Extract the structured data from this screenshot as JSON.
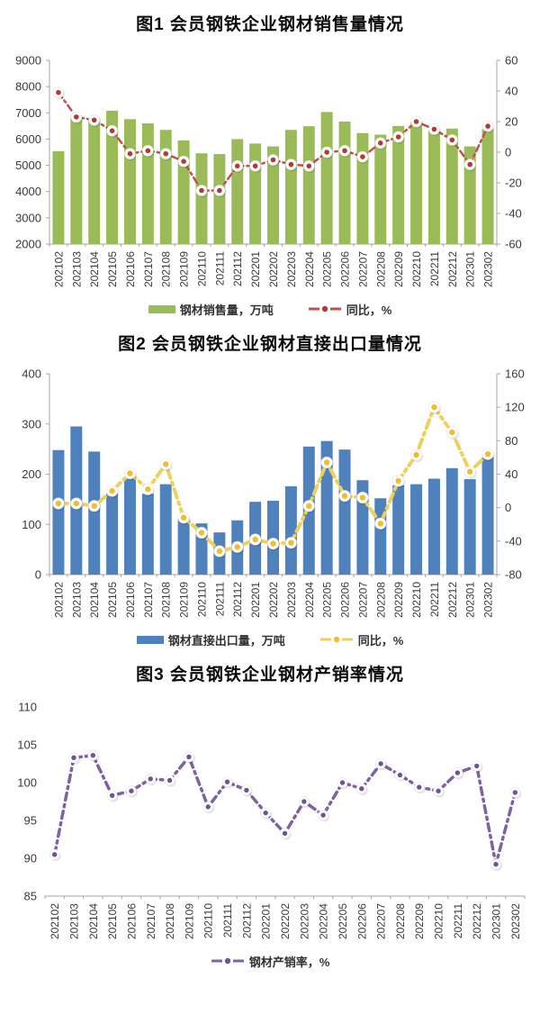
{
  "chart_data": [
    {
      "type": "bar",
      "title": "图1 会员钢铁企业钢材销售量情况",
      "categories": [
        "202102",
        "202103",
        "202104",
        "202105",
        "202106",
        "202107",
        "202108",
        "202109",
        "202110",
        "202111",
        "202112",
        "202201",
        "202202",
        "202203",
        "202204",
        "202205",
        "202206",
        "202207",
        "202208",
        "202209",
        "202210",
        "202211",
        "202212",
        "202301",
        "202302"
      ],
      "series": [
        {
          "name": "钢材销售量，万吨",
          "type": "bar",
          "axis": "left",
          "color": "#9bbb59",
          "values": [
            5540,
            6900,
            6800,
            7080,
            6760,
            6600,
            6350,
            5950,
            5460,
            5430,
            6000,
            5830,
            5720,
            6350,
            6490,
            7030,
            6670,
            6230,
            6170,
            6500,
            6660,
            6330,
            6400,
            5720,
            6380
          ]
        },
        {
          "name": "同比，%",
          "type": "line",
          "axis": "right",
          "color": "#c0504d",
          "dot_color": "#b03a36",
          "values": [
            39,
            23,
            21,
            14,
            -1,
            1,
            -1,
            -6,
            -25,
            -25,
            -9,
            -9,
            -5,
            -8,
            -9,
            0,
            1,
            -3,
            6,
            10,
            20,
            15,
            8,
            -8,
            17
          ]
        }
      ],
      "left_axis": {
        "min": 2000,
        "max": 9000,
        "ticks": [
          2000,
          3000,
          4000,
          5000,
          6000,
          7000,
          8000,
          9000
        ]
      },
      "right_axis": {
        "min": -60,
        "max": 60,
        "ticks": [
          -60,
          -40,
          -20,
          0,
          20,
          40,
          60
        ]
      },
      "grid": "off",
      "legend_position": "bottom"
    },
    {
      "type": "bar",
      "title": "图2 会员钢铁企业钢材直接出口量情况",
      "categories": [
        "202102",
        "202103",
        "202104",
        "202105",
        "202106",
        "202107",
        "202108",
        "202109",
        "202110",
        "202111",
        "202112",
        "202201",
        "202202",
        "202203",
        "202204",
        "202205",
        "202206",
        "202207",
        "202208",
        "202209",
        "202210",
        "202211",
        "202212",
        "202301",
        "202302"
      ],
      "series": [
        {
          "name": "钢材直接出口量，万吨",
          "type": "bar",
          "axis": "left",
          "color": "#4f81bd",
          "values": [
            248,
            295,
            245,
            161,
            194,
            161,
            180,
            112,
            102,
            84,
            108,
            145,
            147,
            176,
            255,
            266,
            249,
            188,
            152,
            178,
            180,
            191,
            212,
            190,
            234
          ]
        },
        {
          "name": "同比，%",
          "type": "line",
          "axis": "right",
          "color": "#ecd15e",
          "dot_color": "#efbe2d",
          "values": [
            5,
            5,
            2,
            20,
            41,
            22,
            52,
            -12,
            -30,
            -52,
            -47,
            -38,
            -43,
            -42,
            2,
            54,
            14,
            12,
            -19,
            32,
            63,
            120,
            90,
            43,
            64
          ]
        }
      ],
      "left_axis": {
        "min": 0,
        "max": 400,
        "ticks": [
          0,
          100,
          200,
          300,
          400
        ]
      },
      "right_axis": {
        "min": -80,
        "max": 160,
        "ticks": [
          -80,
          -40,
          0,
          40,
          80,
          120,
          160
        ]
      },
      "grid": "off",
      "legend_position": "bottom"
    },
    {
      "type": "line",
      "title": "图3 会员钢铁企业钢材产销率情况",
      "categories": [
        "202102",
        "202103",
        "202104",
        "202105",
        "202106",
        "202107",
        "202108",
        "202109",
        "202110",
        "202111",
        "202112",
        "202201",
        "202202",
        "202203",
        "202204",
        "202205",
        "202206",
        "202207",
        "202208",
        "202209",
        "202210",
        "202211",
        "202212",
        "202301",
        "202302"
      ],
      "series": [
        {
          "name": "钢材产销率，%",
          "type": "line",
          "axis": "left",
          "color": "#7e62a1",
          "dot_color": "#6e5490",
          "values": [
            90.5,
            103.3,
            103.6,
            98.3,
            98.9,
            100.5,
            100.3,
            103.4,
            96.8,
            100.1,
            99.0,
            96.0,
            93.3,
            97.5,
            95.7,
            100.0,
            99.2,
            102.5,
            101.0,
            99.4,
            98.9,
            101.3,
            102.2,
            89.2,
            98.7
          ]
        }
      ],
      "left_axis": {
        "min": 85,
        "max": 110,
        "ticks": [
          85,
          90,
          95,
          100,
          105,
          110
        ]
      },
      "grid": "off",
      "legend_position": "bottom"
    }
  ],
  "style": {
    "axis_line_color": "#a6a6a6",
    "axis_label_color": "#3a3a3a"
  }
}
